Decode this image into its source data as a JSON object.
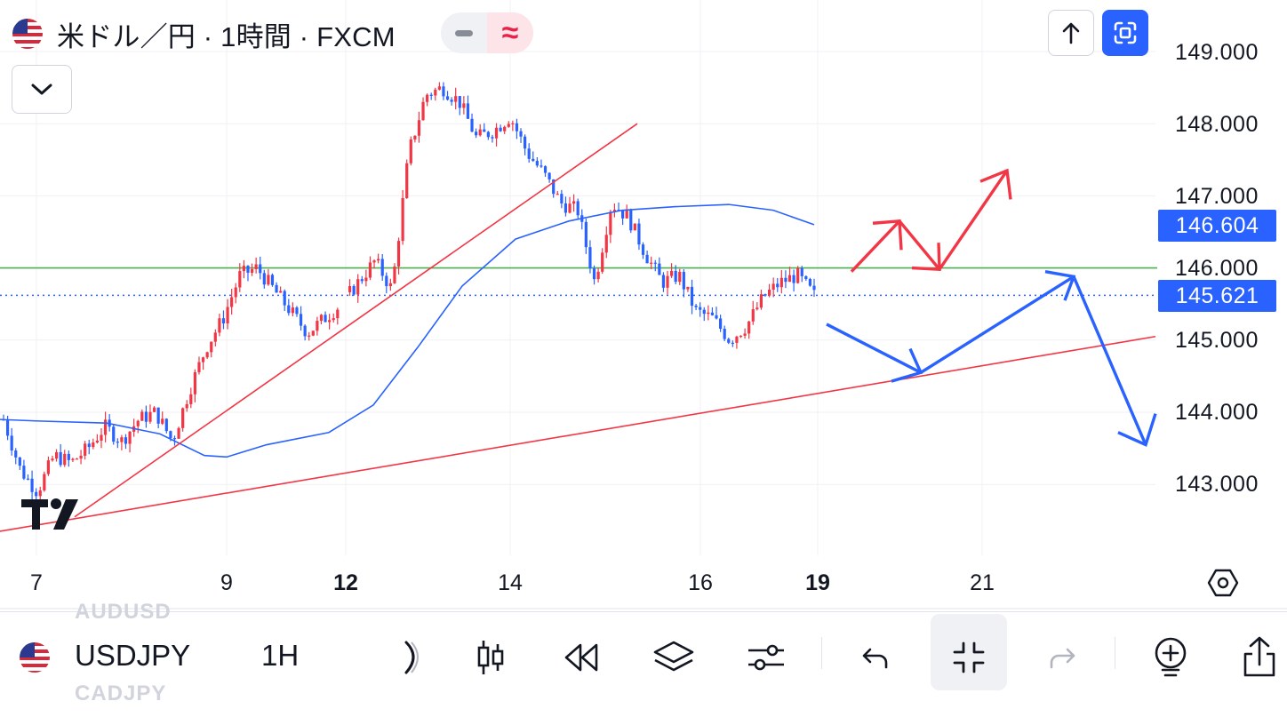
{
  "header": {
    "title": "米ドル／円 · 1時間 · FXCM",
    "flag_icon": "us-flag-icon",
    "pill_left_icon": "minus-icon",
    "pill_right_icon": "approx-icon",
    "up_icon": "arrow-up-icon",
    "fullscreen_icon": "fullscreen-icon",
    "collapse_icon": "chevron-down-icon"
  },
  "price_axis": {
    "labels": [
      "149.000",
      "148.000",
      "147.000",
      "146.000",
      "145.000",
      "144.000",
      "143.000"
    ],
    "ma_value": "146.604",
    "last_price": "145.621"
  },
  "time_axis": {
    "labels": [
      "7",
      "9",
      "12",
      "14",
      "16",
      "19",
      "21"
    ]
  },
  "chart_data": {
    "type": "candlestick",
    "symbol": "USDJPY",
    "interval": "1H",
    "ylim": [
      142.3,
      149.4
    ],
    "levels": {
      "horizontal_support": 146.0,
      "last_price": 145.621,
      "moving_average_last": 146.604
    },
    "ohlc_path_closes": [
      143.9,
      143.2,
      142.9,
      143.4,
      143.3,
      143.5,
      143.8,
      143.6,
      143.9,
      144.0,
      143.6,
      144.3,
      144.9,
      145.3,
      145.9,
      146.0,
      145.7,
      145.4,
      145.1,
      145.3,
      145.5,
      145.8,
      146.1,
      145.7,
      147.6,
      148.4,
      148.5,
      148.3,
      147.8,
      147.9,
      148.1,
      147.6,
      147.3,
      146.9,
      146.8,
      145.8,
      146.9,
      146.7,
      146.2,
      145.8,
      145.9,
      145.4,
      145.3,
      145.0,
      145.2,
      145.6,
      145.8,
      145.9,
      145.62
    ],
    "colors": {
      "up": "#f23645",
      "down": "#2962ff",
      "ma": "#2962ff",
      "trend": "#f23645",
      "support": "#4caf50"
    },
    "drawings": [
      "rising trendline",
      "long rising trendline",
      "red up-path arrows",
      "blue zigzag forecast arrows"
    ]
  },
  "toolbar": {
    "symbol": "USDJPY",
    "interval": "1H",
    "ghost_above": "AUDUSD",
    "ghost_below": "CADJPY",
    "icons": [
      "indicator-icon",
      "candles-icon",
      "replay-icon",
      "layers-icon",
      "settings-sliders-icon",
      "undo-icon",
      "exit-fullscreen-icon",
      "redo-icon",
      "add-alert-icon",
      "share-icon"
    ]
  }
}
